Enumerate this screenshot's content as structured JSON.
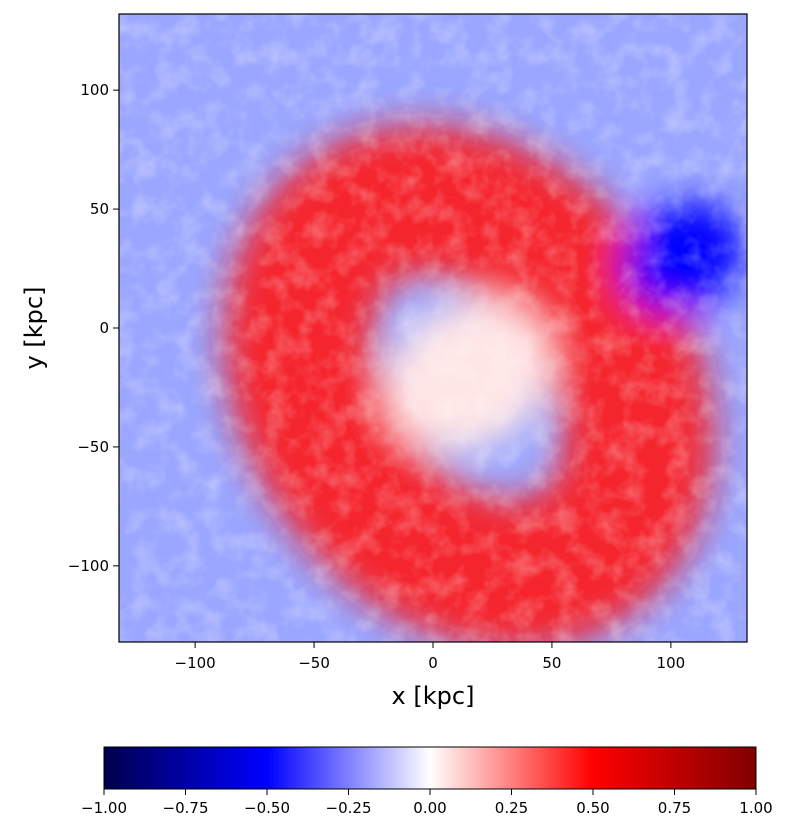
{
  "chart_data": {
    "type": "heatmap",
    "title": "",
    "xlabel": "x [kpc]",
    "ylabel": "y [kpc]",
    "xlim": [
      -132,
      132
    ],
    "ylim": [
      -132,
      132
    ],
    "x_ticks": [
      -100,
      -50,
      0,
      50,
      100
    ],
    "y_ticks": [
      -100,
      -50,
      0,
      50,
      100
    ],
    "x_tick_labels": [
      "−100",
      "−50",
      "0",
      "50",
      "100"
    ],
    "y_tick_labels": [
      "−100",
      "−50",
      "0",
      "50",
      "100"
    ],
    "colormap": "seismic",
    "colormap_stops": [
      "#00004c",
      "#0000ff",
      "#ffffff",
      "#ff0000",
      "#800000"
    ],
    "colorbar": {
      "orientation": "horizontal",
      "range": [
        -1.0,
        1.0
      ],
      "ticks": [
        -1.0,
        -0.75,
        -0.5,
        -0.25,
        0.0,
        0.25,
        0.5,
        0.75,
        1.0
      ],
      "tick_labels": [
        "−1.00",
        "−0.75",
        "−0.50",
        "−0.25",
        "0.00",
        "0.25",
        "0.50",
        "0.75",
        "1.00"
      ]
    },
    "field_features": [
      {
        "description": "red ring",
        "center": [
          15,
          -25
        ],
        "radius": 55,
        "value": 0.45
      },
      {
        "description": "pale core",
        "center": [
          15,
          -20
        ],
        "value": 0.05
      },
      {
        "description": "blue patch",
        "center": [
          105,
          30
        ],
        "value": -0.5
      },
      {
        "description": "blue background",
        "value": -0.25
      }
    ]
  }
}
